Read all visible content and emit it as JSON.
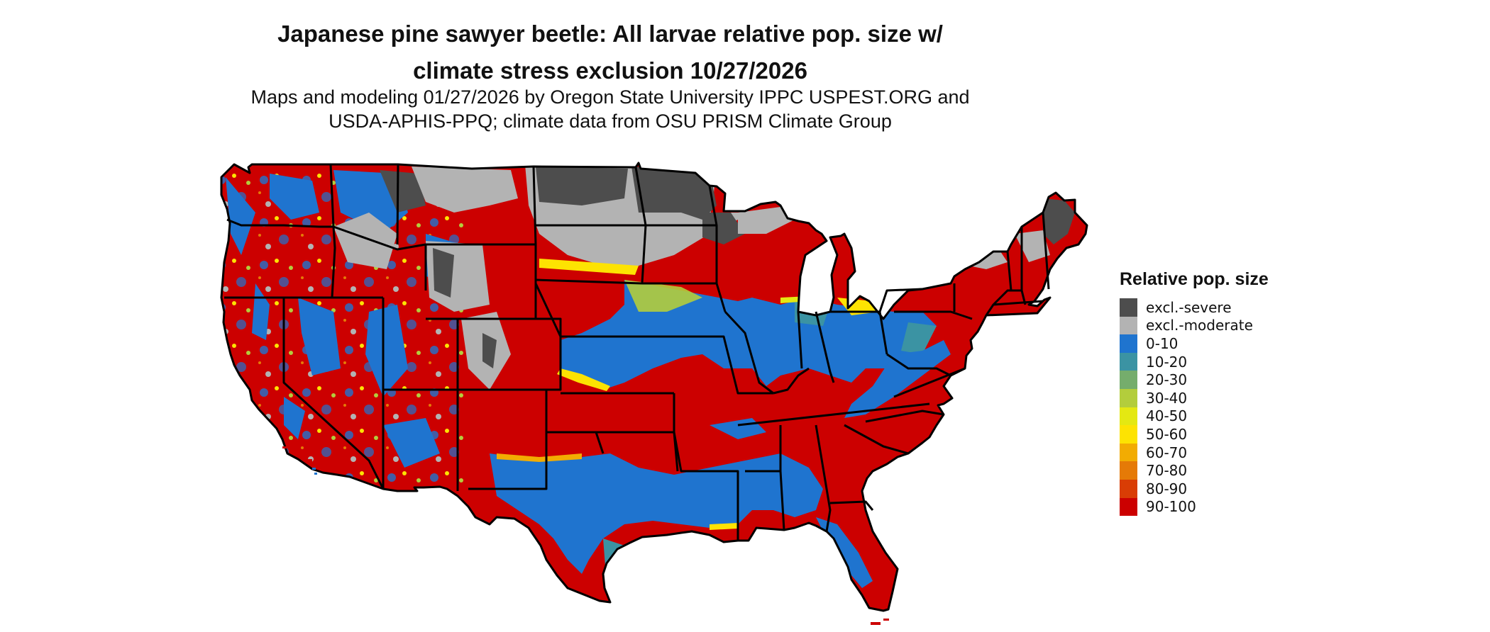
{
  "title_line1": "Japanese pine sawyer beetle: All larvae relative pop. size w/",
  "title_line2": "climate stress exclusion 10/27/2026",
  "subtitle_line1": "Maps and modeling 01/27/2026 by Oregon State University IPPC USPEST.ORG and",
  "subtitle_line2": "USDA-APHIS-PPQ; climate data from OSU PRISM Climate Group",
  "legend": {
    "title": "Relative pop. size",
    "items": [
      {
        "label": "excl.-severe",
        "color": "#4d4d4d"
      },
      {
        "label": "excl.-moderate",
        "color": "#b3b3b3"
      },
      {
        "label": "0-10",
        "color": "#1f74cf"
      },
      {
        "label": "10-20",
        "color": "#3b93a3"
      },
      {
        "label": "20-30",
        "color": "#75ad6c"
      },
      {
        "label": "30-40",
        "color": "#b3cd3c"
      },
      {
        "label": "40-50",
        "color": "#e4e812"
      },
      {
        "label": "50-60",
        "color": "#fde302"
      },
      {
        "label": "60-70",
        "color": "#f2ac02"
      },
      {
        "label": "70-80",
        "color": "#e57a07"
      },
      {
        "label": "80-90",
        "color": "#d93d05"
      },
      {
        "label": "90-100",
        "color": "#cc0000"
      }
    ]
  }
}
